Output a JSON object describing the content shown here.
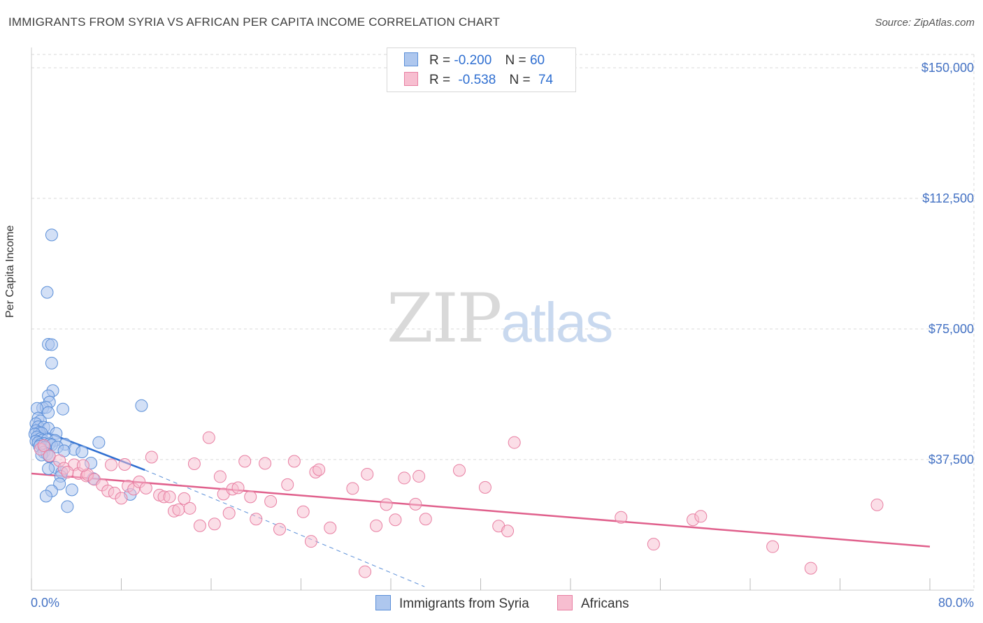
{
  "title": "IMMIGRANTS FROM SYRIA VS AFRICAN PER CAPITA INCOME CORRELATION CHART",
  "source": "Source: ZipAtlas.com",
  "watermark": {
    "part1": "ZIP",
    "part2": "atlas"
  },
  "legend": {
    "series1": {
      "r_label": "R =",
      "r_value": "-0.200",
      "n_label": "N =",
      "n_value": "60"
    },
    "series2": {
      "r_label": "R =",
      "r_value": "-0.538",
      "n_label": "N =",
      "n_value": "74"
    }
  },
  "colors": {
    "syria_fill": "#aec7ee",
    "syria_stroke": "#5b8fd8",
    "syria_line": "#2f6fd1",
    "africa_fill": "#f7bed0",
    "africa_stroke": "#e87fa2",
    "africa_line": "#e0608c",
    "grid": "#d9d9d9",
    "axis_label": "#4472c4"
  },
  "chart_data": {
    "type": "scatter",
    "title": "IMMIGRANTS FROM SYRIA VS AFRICAN PER CAPITA INCOME CORRELATION CHART",
    "xlabel": "",
    "ylabel": "Per Capita Income",
    "xlim": [
      0,
      80
    ],
    "ylim": [
      0,
      152000
    ],
    "x_tick_labels": [
      "0.0%",
      "80.0%"
    ],
    "y_ticks": [
      37500,
      75000,
      112500,
      150000
    ],
    "y_tick_labels": [
      "$37,500",
      "$75,000",
      "$112,500",
      "$150,000"
    ],
    "grid": true,
    "legend_position": "top-center",
    "series": [
      {
        "name": "Immigrants from Syria",
        "color": "#5b8fd8",
        "points": [
          [
            1.8,
            102000
          ],
          [
            1.4,
            85500
          ],
          [
            1.5,
            70600
          ],
          [
            1.8,
            70500
          ],
          [
            1.8,
            65200
          ],
          [
            1.9,
            57300
          ],
          [
            1.5,
            55800
          ],
          [
            1.6,
            54000
          ],
          [
            1.0,
            52300
          ],
          [
            1.3,
            52500
          ],
          [
            2.8,
            52000
          ],
          [
            1.5,
            51000
          ],
          [
            9.8,
            53000
          ],
          [
            0.5,
            52200
          ],
          [
            0.6,
            49400
          ],
          [
            0.8,
            48600
          ],
          [
            0.4,
            47800
          ],
          [
            0.6,
            46900
          ],
          [
            1.1,
            46800
          ],
          [
            1.5,
            46500
          ],
          [
            0.4,
            45800
          ],
          [
            0.7,
            45300
          ],
          [
            0.9,
            45100
          ],
          [
            2.2,
            45000
          ],
          [
            0.3,
            44800
          ],
          [
            0.5,
            44000
          ],
          [
            0.8,
            43500
          ],
          [
            1.0,
            43100
          ],
          [
            1.4,
            43200
          ],
          [
            2.1,
            43000
          ],
          [
            0.4,
            42800
          ],
          [
            0.6,
            42400
          ],
          [
            1.1,
            42100
          ],
          [
            1.6,
            42000
          ],
          [
            0.8,
            41800
          ],
          [
            1.8,
            41700
          ],
          [
            3.0,
            41900
          ],
          [
            0.7,
            41300
          ],
          [
            1.2,
            41000
          ],
          [
            2.3,
            41100
          ],
          [
            6.0,
            42400
          ],
          [
            3.8,
            40400
          ],
          [
            2.9,
            40000
          ],
          [
            1.1,
            39600
          ],
          [
            1.4,
            39100
          ],
          [
            0.9,
            38800
          ],
          [
            1.6,
            38400
          ],
          [
            5.3,
            36500
          ],
          [
            2.1,
            35300
          ],
          [
            1.5,
            34900
          ],
          [
            2.7,
            33800
          ],
          [
            5.5,
            32000
          ],
          [
            2.6,
            32700
          ],
          [
            2.5,
            30500
          ],
          [
            1.8,
            28500
          ],
          [
            3.6,
            28800
          ],
          [
            8.8,
            27500
          ],
          [
            1.3,
            27000
          ],
          [
            3.2,
            24000
          ],
          [
            4.5,
            39700
          ]
        ]
      },
      {
        "name": "Africans",
        "color": "#e87fa2",
        "points": [
          [
            0.8,
            40500
          ],
          [
            1.1,
            41500
          ],
          [
            1.6,
            38600
          ],
          [
            2.5,
            37200
          ],
          [
            2.9,
            35000
          ],
          [
            3.8,
            36000
          ],
          [
            4.2,
            33500
          ],
          [
            4.9,
            32800
          ],
          [
            5.0,
            33200
          ],
          [
            5.6,
            31800
          ],
          [
            6.3,
            30200
          ],
          [
            6.8,
            28500
          ],
          [
            7.1,
            36000
          ],
          [
            7.4,
            27900
          ],
          [
            8.0,
            26400
          ],
          [
            8.3,
            36100
          ],
          [
            8.6,
            29900
          ],
          [
            9.1,
            29000
          ],
          [
            9.6,
            31100
          ],
          [
            10.2,
            29300
          ],
          [
            10.7,
            38200
          ],
          [
            11.4,
            27300
          ],
          [
            11.8,
            26800
          ],
          [
            12.3,
            26800
          ],
          [
            12.7,
            22700
          ],
          [
            13.1,
            23100
          ],
          [
            13.6,
            26300
          ],
          [
            14.1,
            23500
          ],
          [
            14.5,
            36300
          ],
          [
            15.0,
            18500
          ],
          [
            15.8,
            43800
          ],
          [
            16.3,
            19000
          ],
          [
            16.8,
            32600
          ],
          [
            17.1,
            27600
          ],
          [
            17.6,
            22100
          ],
          [
            17.9,
            29000
          ],
          [
            18.4,
            29400
          ],
          [
            19.0,
            37000
          ],
          [
            19.5,
            26800
          ],
          [
            20.0,
            20400
          ],
          [
            20.8,
            36400
          ],
          [
            21.3,
            25500
          ],
          [
            22.1,
            17500
          ],
          [
            22.8,
            30300
          ],
          [
            23.4,
            37000
          ],
          [
            24.2,
            22500
          ],
          [
            24.9,
            14000
          ],
          [
            25.3,
            33900
          ],
          [
            25.6,
            34600
          ],
          [
            26.6,
            17900
          ],
          [
            28.6,
            29200
          ],
          [
            29.7,
            5300
          ],
          [
            29.9,
            33300
          ],
          [
            30.7,
            18500
          ],
          [
            31.6,
            24600
          ],
          [
            32.4,
            20200
          ],
          [
            33.2,
            32200
          ],
          [
            34.2,
            24700
          ],
          [
            34.5,
            32700
          ],
          [
            35.1,
            20400
          ],
          [
            38.1,
            34400
          ],
          [
            40.4,
            29500
          ],
          [
            41.6,
            18400
          ],
          [
            42.4,
            17000
          ],
          [
            43.0,
            42400
          ],
          [
            52.5,
            20900
          ],
          [
            55.4,
            13200
          ],
          [
            58.9,
            20200
          ],
          [
            59.6,
            21200
          ],
          [
            66.0,
            12500
          ],
          [
            69.4,
            6300
          ],
          [
            75.3,
            24500
          ],
          [
            4.6,
            35800
          ],
          [
            3.2,
            33900
          ]
        ]
      }
    ],
    "trendlines": [
      {
        "series": "Immigrants from Syria",
        "solid_x": [
          0,
          10.1
        ],
        "y_at": [
          47000,
          34500
        ],
        "dashed_x": [
          10.1,
          35.0
        ],
        "dashed_y_end": 1000
      },
      {
        "series": "Africans",
        "x": [
          0,
          80
        ],
        "y": [
          33500,
          12500
        ]
      }
    ]
  },
  "bottom_legend": {
    "item1": "Immigrants from Syria",
    "item2": "Africans"
  }
}
